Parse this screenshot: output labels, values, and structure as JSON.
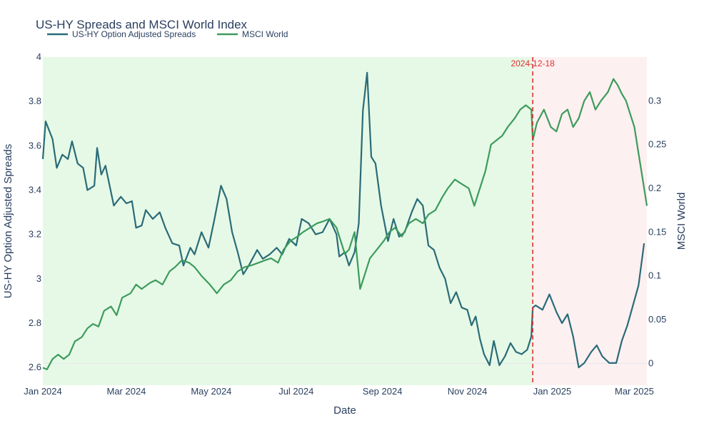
{
  "chart_data": {
    "type": "line",
    "title": "US-HY Spreads and MSCI World Index",
    "xlabel": "Date",
    "ylabel_left": "US-HY Option Adjusted Spreads",
    "ylabel_right": "MSCI World",
    "x_range": [
      "2024-01-01",
      "2025-03-10"
    ],
    "y_left_range": [
      2.52,
      4.0
    ],
    "y_right_range": [
      -0.025,
      0.35
    ],
    "y_left_ticks": [
      {
        "value": 2.6,
        "label": "2.6"
      },
      {
        "value": 2.8,
        "label": "2.8"
      },
      {
        "value": 3.0,
        "label": "3"
      },
      {
        "value": 3.2,
        "label": "3.2"
      },
      {
        "value": 3.4,
        "label": "3.4"
      },
      {
        "value": 3.6,
        "label": "3.6"
      },
      {
        "value": 3.8,
        "label": "3.8"
      },
      {
        "value": 4.0,
        "label": "4"
      }
    ],
    "y_right_ticks": [
      {
        "value": 0.0,
        "label": "0"
      },
      {
        "value": 0.05,
        "label": "0.05"
      },
      {
        "value": 0.1,
        "label": "0.1"
      },
      {
        "value": 0.15,
        "label": "0.15"
      },
      {
        "value": 0.2,
        "label": "0.2"
      },
      {
        "value": 0.25,
        "label": "0.25"
      },
      {
        "value": 0.3,
        "label": "0.3"
      }
    ],
    "x_ticks": [
      {
        "date": "2024-01-01",
        "label": "Jan 2024"
      },
      {
        "date": "2024-03-01",
        "label": "Mar 2024"
      },
      {
        "date": "2024-05-01",
        "label": "May 2024"
      },
      {
        "date": "2024-07-01",
        "label": "Jul 2024"
      },
      {
        "date": "2024-09-01",
        "label": "Sep 2024"
      },
      {
        "date": "2024-11-01",
        "label": "Nov 2024"
      },
      {
        "date": "2025-01-01",
        "label": "Jan 2025"
      },
      {
        "date": "2025-03-01",
        "label": "Mar 2025"
      }
    ],
    "regions": [
      {
        "start": "2024-01-01",
        "end": "2024-12-18",
        "color": "#e6f9e6"
      },
      {
        "start": "2024-12-18",
        "end": "2025-03-10",
        "color": "#fdf0f0"
      }
    ],
    "annotation": {
      "date": "2024-12-18",
      "label": "2024-12-18",
      "color": "#e03030"
    },
    "legend_position": "top-left",
    "series": [
      {
        "name": "US-HY Option Adjusted Spreads",
        "axis": "left",
        "color": "#2a6b78",
        "points": [
          [
            "2024-01-01",
            3.54
          ],
          [
            "2024-01-03",
            3.71
          ],
          [
            "2024-01-08",
            3.63
          ],
          [
            "2024-01-11",
            3.5
          ],
          [
            "2024-01-15",
            3.56
          ],
          [
            "2024-01-19",
            3.54
          ],
          [
            "2024-01-22",
            3.62
          ],
          [
            "2024-01-26",
            3.52
          ],
          [
            "2024-01-30",
            3.5
          ],
          [
            "2024-02-02",
            3.4
          ],
          [
            "2024-02-07",
            3.42
          ],
          [
            "2024-02-09",
            3.59
          ],
          [
            "2024-02-12",
            3.47
          ],
          [
            "2024-02-15",
            3.51
          ],
          [
            "2024-02-21",
            3.33
          ],
          [
            "2024-02-26",
            3.37
          ],
          [
            "2024-03-01",
            3.34
          ],
          [
            "2024-03-05",
            3.35
          ],
          [
            "2024-03-08",
            3.23
          ],
          [
            "2024-03-12",
            3.24
          ],
          [
            "2024-03-15",
            3.31
          ],
          [
            "2024-03-20",
            3.27
          ],
          [
            "2024-03-25",
            3.3
          ],
          [
            "2024-03-29",
            3.23
          ],
          [
            "2024-04-03",
            3.16
          ],
          [
            "2024-04-08",
            3.15
          ],
          [
            "2024-04-11",
            3.06
          ],
          [
            "2024-04-16",
            3.14
          ],
          [
            "2024-04-19",
            3.11
          ],
          [
            "2024-04-24",
            3.21
          ],
          [
            "2024-04-29",
            3.14
          ],
          [
            "2024-05-03",
            3.26
          ],
          [
            "2024-05-08",
            3.42
          ],
          [
            "2024-05-12",
            3.36
          ],
          [
            "2024-05-16",
            3.21
          ],
          [
            "2024-05-20",
            3.12
          ],
          [
            "2024-05-24",
            3.02
          ],
          [
            "2024-05-28",
            3.06
          ],
          [
            "2024-06-03",
            3.13
          ],
          [
            "2024-06-07",
            3.09
          ],
          [
            "2024-06-12",
            3.11
          ],
          [
            "2024-06-17",
            3.14
          ],
          [
            "2024-06-21",
            3.11
          ],
          [
            "2024-06-26",
            3.18
          ],
          [
            "2024-07-01",
            3.15
          ],
          [
            "2024-07-05",
            3.27
          ],
          [
            "2024-07-10",
            3.25
          ],
          [
            "2024-07-15",
            3.2
          ],
          [
            "2024-07-20",
            3.21
          ],
          [
            "2024-07-25",
            3.27
          ],
          [
            "2024-07-30",
            3.2
          ],
          [
            "2024-08-01",
            3.1
          ],
          [
            "2024-08-05",
            3.12
          ],
          [
            "2024-08-08",
            3.06
          ],
          [
            "2024-08-12",
            3.12
          ],
          [
            "2024-08-15",
            3.25
          ],
          [
            "2024-08-18",
            3.76
          ],
          [
            "2024-08-21",
            3.93
          ],
          [
            "2024-08-24",
            3.55
          ],
          [
            "2024-08-27",
            3.52
          ],
          [
            "2024-08-31",
            3.33
          ],
          [
            "2024-09-05",
            3.17
          ],
          [
            "2024-09-09",
            3.27
          ],
          [
            "2024-09-13",
            3.19
          ],
          [
            "2024-09-17",
            3.21
          ],
          [
            "2024-09-22",
            3.3
          ],
          [
            "2024-09-26",
            3.36
          ],
          [
            "2024-09-30",
            3.33
          ],
          [
            "2024-10-04",
            3.15
          ],
          [
            "2024-10-08",
            3.13
          ],
          [
            "2024-10-12",
            3.05
          ],
          [
            "2024-10-16",
            3.0
          ],
          [
            "2024-10-20",
            2.89
          ],
          [
            "2024-10-24",
            2.94
          ],
          [
            "2024-10-28",
            2.87
          ],
          [
            "2024-11-01",
            2.86
          ],
          [
            "2024-11-04",
            2.79
          ],
          [
            "2024-11-07",
            2.83
          ],
          [
            "2024-11-10",
            2.73
          ],
          [
            "2024-11-13",
            2.66
          ],
          [
            "2024-11-17",
            2.61
          ],
          [
            "2024-11-20",
            2.72
          ],
          [
            "2024-11-24",
            2.61
          ],
          [
            "2024-11-28",
            2.65
          ],
          [
            "2024-12-02",
            2.71
          ],
          [
            "2024-12-06",
            2.67
          ],
          [
            "2024-12-10",
            2.66
          ],
          [
            "2024-12-14",
            2.68
          ],
          [
            "2024-12-17",
            2.74
          ],
          [
            "2024-12-18",
            2.87
          ],
          [
            "2024-12-20",
            2.88
          ],
          [
            "2024-12-25",
            2.86
          ],
          [
            "2024-12-30",
            2.93
          ],
          [
            "2025-01-04",
            2.85
          ],
          [
            "2025-01-08",
            2.8
          ],
          [
            "2025-01-12",
            2.84
          ],
          [
            "2025-01-16",
            2.74
          ],
          [
            "2025-01-20",
            2.6
          ],
          [
            "2025-01-24",
            2.62
          ],
          [
            "2025-01-29",
            2.67
          ],
          [
            "2025-02-02",
            2.7
          ],
          [
            "2025-02-06",
            2.65
          ],
          [
            "2025-02-11",
            2.62
          ],
          [
            "2025-02-16",
            2.62
          ],
          [
            "2025-02-20",
            2.72
          ],
          [
            "2025-02-24",
            2.79
          ],
          [
            "2025-02-28",
            2.88
          ],
          [
            "2025-03-04",
            2.97
          ],
          [
            "2025-03-08",
            3.16
          ]
        ]
      },
      {
        "name": "MSCI World",
        "axis": "right",
        "color": "#3c9b5c",
        "points": [
          [
            "2024-01-01",
            -0.005
          ],
          [
            "2024-01-04",
            -0.007
          ],
          [
            "2024-01-08",
            0.005
          ],
          [
            "2024-01-12",
            0.01
          ],
          [
            "2024-01-16",
            0.005
          ],
          [
            "2024-01-20",
            0.01
          ],
          [
            "2024-01-24",
            0.025
          ],
          [
            "2024-01-29",
            0.03
          ],
          [
            "2024-02-02",
            0.04
          ],
          [
            "2024-02-06",
            0.045
          ],
          [
            "2024-02-10",
            0.042
          ],
          [
            "2024-02-14",
            0.06
          ],
          [
            "2024-02-19",
            0.065
          ],
          [
            "2024-02-23",
            0.055
          ],
          [
            "2024-02-27",
            0.075
          ],
          [
            "2024-03-04",
            0.08
          ],
          [
            "2024-03-08",
            0.09
          ],
          [
            "2024-03-12",
            0.085
          ],
          [
            "2024-03-18",
            0.092
          ],
          [
            "2024-03-22",
            0.095
          ],
          [
            "2024-03-27",
            0.09
          ],
          [
            "2024-04-01",
            0.105
          ],
          [
            "2024-04-05",
            0.11
          ],
          [
            "2024-04-10",
            0.118
          ],
          [
            "2024-04-15",
            0.115
          ],
          [
            "2024-04-19",
            0.11
          ],
          [
            "2024-04-24",
            0.1
          ],
          [
            "2024-04-30",
            0.09
          ],
          [
            "2024-05-05",
            0.08
          ],
          [
            "2024-05-10",
            0.09
          ],
          [
            "2024-05-15",
            0.095
          ],
          [
            "2024-05-20",
            0.105
          ],
          [
            "2024-05-25",
            0.11
          ],
          [
            "2024-05-30",
            0.112
          ],
          [
            "2024-06-04",
            0.115
          ],
          [
            "2024-06-09",
            0.118
          ],
          [
            "2024-06-13",
            0.12
          ],
          [
            "2024-06-18",
            0.115
          ],
          [
            "2024-06-22",
            0.13
          ],
          [
            "2024-06-27",
            0.14
          ],
          [
            "2024-07-02",
            0.145
          ],
          [
            "2024-07-06",
            0.15
          ],
          [
            "2024-07-11",
            0.155
          ],
          [
            "2024-07-16",
            0.16
          ],
          [
            "2024-07-20",
            0.162
          ],
          [
            "2024-07-25",
            0.165
          ],
          [
            "2024-07-30",
            0.155
          ],
          [
            "2024-08-01",
            0.145
          ],
          [
            "2024-08-05",
            0.125
          ],
          [
            "2024-08-08",
            0.13
          ],
          [
            "2024-08-12",
            0.15
          ],
          [
            "2024-08-16",
            0.085
          ],
          [
            "2024-08-19",
            0.1
          ],
          [
            "2024-08-23",
            0.12
          ],
          [
            "2024-08-28",
            0.13
          ],
          [
            "2024-09-02",
            0.14
          ],
          [
            "2024-09-06",
            0.15
          ],
          [
            "2024-09-10",
            0.155
          ],
          [
            "2024-09-15",
            0.145
          ],
          [
            "2024-09-20",
            0.16
          ],
          [
            "2024-09-25",
            0.165
          ],
          [
            "2024-09-30",
            0.16
          ],
          [
            "2024-10-04",
            0.17
          ],
          [
            "2024-10-09",
            0.175
          ],
          [
            "2024-10-14",
            0.19
          ],
          [
            "2024-10-18",
            0.2
          ],
          [
            "2024-10-23",
            0.21
          ],
          [
            "2024-10-28",
            0.205
          ],
          [
            "2024-11-02",
            0.2
          ],
          [
            "2024-11-06",
            0.18
          ],
          [
            "2024-11-10",
            0.2
          ],
          [
            "2024-11-14",
            0.22
          ],
          [
            "2024-11-18",
            0.25
          ],
          [
            "2024-11-22",
            0.255
          ],
          [
            "2024-11-26",
            0.26
          ],
          [
            "2024-11-30",
            0.27
          ],
          [
            "2024-12-05",
            0.28
          ],
          [
            "2024-12-09",
            0.29
          ],
          [
            "2024-12-13",
            0.295
          ],
          [
            "2024-12-17",
            0.29
          ],
          [
            "2024-12-18",
            0.255
          ],
          [
            "2024-12-21",
            0.275
          ],
          [
            "2024-12-26",
            0.29
          ],
          [
            "2024-12-31",
            0.27
          ],
          [
            "2025-01-04",
            0.265
          ],
          [
            "2025-01-08",
            0.285
          ],
          [
            "2025-01-12",
            0.29
          ],
          [
            "2025-01-16",
            0.27
          ],
          [
            "2025-01-20",
            0.28
          ],
          [
            "2025-01-24",
            0.3
          ],
          [
            "2025-01-28",
            0.31
          ],
          [
            "2025-02-01",
            0.29
          ],
          [
            "2025-02-05",
            0.3
          ],
          [
            "2025-02-10",
            0.31
          ],
          [
            "2025-02-14",
            0.325
          ],
          [
            "2025-02-17",
            0.318
          ],
          [
            "2025-02-20",
            0.308
          ],
          [
            "2025-02-23",
            0.3
          ],
          [
            "2025-02-26",
            0.285
          ],
          [
            "2025-03-01",
            0.27
          ],
          [
            "2025-03-04",
            0.24
          ],
          [
            "2025-03-07",
            0.21
          ],
          [
            "2025-03-10",
            0.18
          ]
        ]
      }
    ]
  }
}
